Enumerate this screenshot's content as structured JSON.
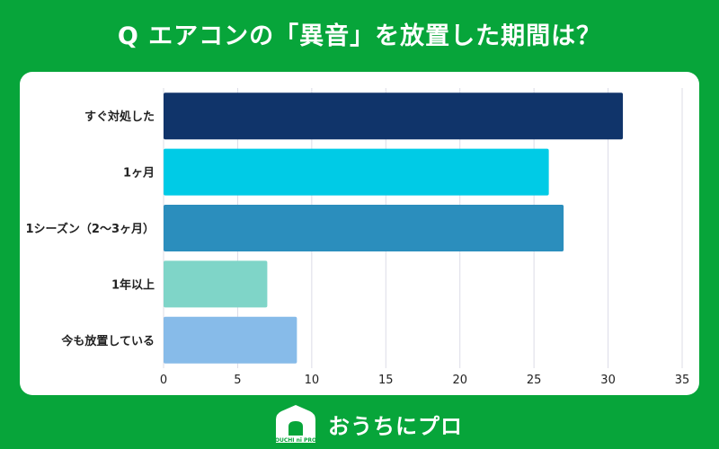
{
  "title": "Q エアコンの「異音」を放置した期間は？",
  "brand": {
    "name": "おうちにプロ",
    "logo_caption": "OUCHI ni PRO"
  },
  "colors": {
    "background": "#07a53a",
    "grid": "#dcdce6"
  },
  "chart_data": {
    "type": "bar",
    "orientation": "horizontal",
    "categories": [
      "すぐ対処した",
      "1ヶ月",
      "1シーズン（2～3ヶ月）",
      "1年以上",
      "今も放置している"
    ],
    "values": [
      31,
      26,
      27,
      7,
      9
    ],
    "bar_colors": [
      "#10346a",
      "#00cbe6",
      "#2b8ebd",
      "#7fd5c8",
      "#87bbe9"
    ],
    "xlim": [
      0,
      35
    ],
    "xticks": [
      0,
      5,
      10,
      15,
      20,
      25,
      30,
      35
    ],
    "grid": true
  }
}
